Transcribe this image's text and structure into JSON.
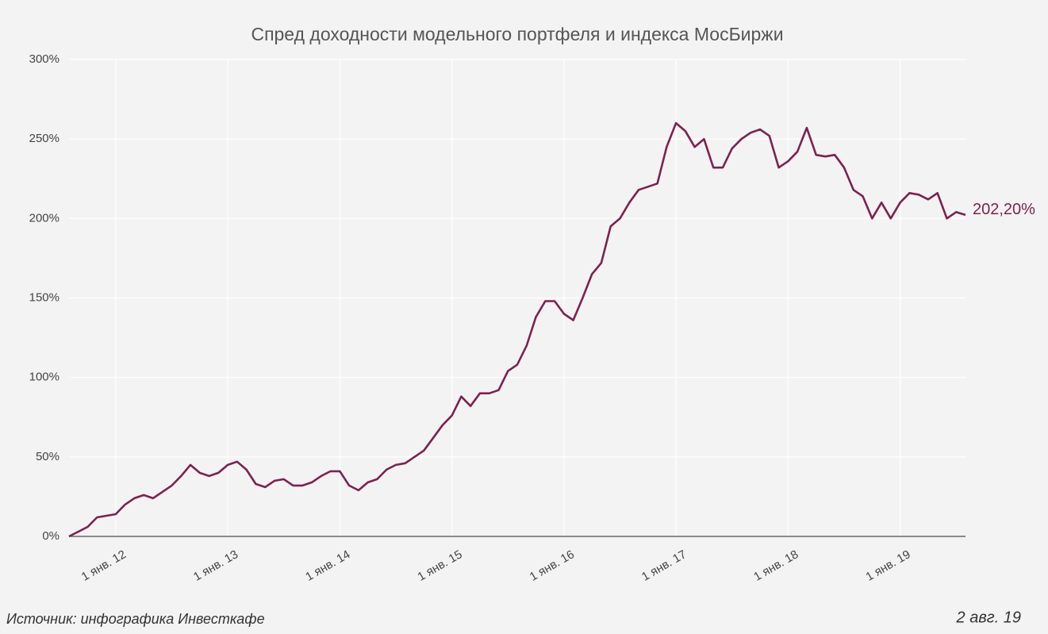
{
  "chart_data": {
    "type": "line",
    "title": "Спред доходности модельного портфеля и индекса МосБиржи",
    "x": [
      "2011-08",
      "2011-09",
      "2011-10",
      "2011-11",
      "2011-12",
      "2012-01",
      "2012-02",
      "2012-03",
      "2012-04",
      "2012-05",
      "2012-06",
      "2012-07",
      "2012-08",
      "2012-09",
      "2012-10",
      "2012-11",
      "2012-12",
      "2013-01",
      "2013-02",
      "2013-03",
      "2013-04",
      "2013-05",
      "2013-06",
      "2013-07",
      "2013-08",
      "2013-09",
      "2013-10",
      "2013-11",
      "2013-12",
      "2014-01",
      "2014-02",
      "2014-03",
      "2014-04",
      "2014-05",
      "2014-06",
      "2014-07",
      "2014-08",
      "2014-09",
      "2014-10",
      "2014-11",
      "2014-12",
      "2015-01",
      "2015-02",
      "2015-03",
      "2015-04",
      "2015-05",
      "2015-06",
      "2015-07",
      "2015-08",
      "2015-09",
      "2015-10",
      "2015-11",
      "2015-12",
      "2016-01",
      "2016-02",
      "2016-03",
      "2016-04",
      "2016-05",
      "2016-06",
      "2016-07",
      "2016-08",
      "2016-09",
      "2016-10",
      "2016-11",
      "2016-12",
      "2017-01",
      "2017-02",
      "2017-03",
      "2017-04",
      "2017-05",
      "2017-06",
      "2017-07",
      "2017-08",
      "2017-09",
      "2017-10",
      "2017-11",
      "2017-12",
      "2018-01",
      "2018-02",
      "2018-03",
      "2018-04",
      "2018-05",
      "2018-06",
      "2018-07",
      "2018-08",
      "2018-09",
      "2018-10",
      "2018-11",
      "2018-12",
      "2019-01",
      "2019-02",
      "2019-03",
      "2019-04",
      "2019-05",
      "2019-06",
      "2019-07",
      "2019-08"
    ],
    "series": [
      {
        "name": "Спред",
        "color": "#7d2150",
        "values": [
          0,
          3,
          6,
          12,
          13,
          14,
          20,
          24,
          26,
          24,
          28,
          32,
          38,
          45,
          40,
          38,
          40,
          45,
          47,
          42,
          33,
          31,
          35,
          36,
          32,
          32,
          34,
          38,
          41,
          41,
          32,
          29,
          34,
          36,
          42,
          45,
          46,
          50,
          54,
          62,
          70,
          76,
          88,
          82,
          90,
          90,
          92,
          104,
          108,
          120,
          138,
          148,
          148,
          140,
          136,
          150,
          165,
          172,
          195,
          200,
          210,
          218,
          220,
          222,
          245,
          260,
          255,
          245,
          250,
          232,
          232,
          244,
          250,
          254,
          256,
          252,
          232,
          236,
          242,
          257,
          240,
          239,
          240,
          232,
          218,
          214,
          200,
          210,
          200,
          210,
          216,
          215,
          212,
          216,
          200,
          204,
          202.2
        ]
      }
    ],
    "end_label": "202,20%",
    "xlim": [
      "2011-08",
      "2019-08"
    ],
    "xticks": [
      {
        "value": "2012-01",
        "label": "1 янв. 12"
      },
      {
        "value": "2013-01",
        "label": "1 янв. 13"
      },
      {
        "value": "2014-01",
        "label": "1 янв. 14"
      },
      {
        "value": "2015-01",
        "label": "1 янв. 15"
      },
      {
        "value": "2016-01",
        "label": "1 янв. 16"
      },
      {
        "value": "2017-01",
        "label": "1 янв. 17"
      },
      {
        "value": "2018-01",
        "label": "1 янв. 18"
      },
      {
        "value": "2019-01",
        "label": "1 янв. 19"
      }
    ],
    "ylim": [
      0,
      300
    ],
    "yticks": [
      {
        "value": 0,
        "label": "0%"
      },
      {
        "value": 50,
        "label": "50%"
      },
      {
        "value": 100,
        "label": "100%"
      },
      {
        "value": 150,
        "label": "150%"
      },
      {
        "value": 200,
        "label": "200%"
      },
      {
        "value": 250,
        "label": "250%"
      },
      {
        "value": 300,
        "label": "300%"
      }
    ],
    "grid": true,
    "source": "Источник: инфографика Инвесткафе",
    "date": "2 авг. 19"
  }
}
